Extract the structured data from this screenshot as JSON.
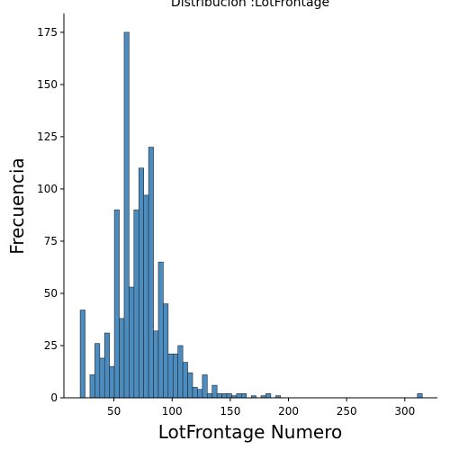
{
  "chart_data": {
    "type": "bar",
    "title": "Distribución :LotFrontage",
    "xlabel": "LotFrontage Numero",
    "ylabel": "Frecuencia",
    "xlim": [
      7,
      328
    ],
    "ylim": [
      0,
      184
    ],
    "xticks": [
      50,
      100,
      150,
      200,
      250,
      300
    ],
    "yticks": [
      0,
      25,
      50,
      75,
      100,
      125,
      150,
      175
    ],
    "bin_width": 4.2,
    "bins": [
      {
        "x0": 21.0,
        "value": 42
      },
      {
        "x0": 29.4,
        "value": 11
      },
      {
        "x0": 33.6,
        "value": 26
      },
      {
        "x0": 37.8,
        "value": 19
      },
      {
        "x0": 42.0,
        "value": 31
      },
      {
        "x0": 46.2,
        "value": 15
      },
      {
        "x0": 50.4,
        "value": 90
      },
      {
        "x0": 54.6,
        "value": 38
      },
      {
        "x0": 58.8,
        "value": 175
      },
      {
        "x0": 63.0,
        "value": 53
      },
      {
        "x0": 67.2,
        "value": 90
      },
      {
        "x0": 71.4,
        "value": 110
      },
      {
        "x0": 75.6,
        "value": 97
      },
      {
        "x0": 79.8,
        "value": 120
      },
      {
        "x0": 84.0,
        "value": 32
      },
      {
        "x0": 88.2,
        "value": 65
      },
      {
        "x0": 92.4,
        "value": 45
      },
      {
        "x0": 96.6,
        "value": 21
      },
      {
        "x0": 100.8,
        "value": 21
      },
      {
        "x0": 105.0,
        "value": 25
      },
      {
        "x0": 109.2,
        "value": 17
      },
      {
        "x0": 113.4,
        "value": 12
      },
      {
        "x0": 117.6,
        "value": 5
      },
      {
        "x0": 121.8,
        "value": 4
      },
      {
        "x0": 126.0,
        "value": 11
      },
      {
        "x0": 130.2,
        "value": 2
      },
      {
        "x0": 134.4,
        "value": 6
      },
      {
        "x0": 138.6,
        "value": 2
      },
      {
        "x0": 142.8,
        "value": 2
      },
      {
        "x0": 147.0,
        "value": 2
      },
      {
        "x0": 151.2,
        "value": 1
      },
      {
        "x0": 155.4,
        "value": 2
      },
      {
        "x0": 159.6,
        "value": 2
      },
      {
        "x0": 168.0,
        "value": 1
      },
      {
        "x0": 176.4,
        "value": 1
      },
      {
        "x0": 180.6,
        "value": 2
      },
      {
        "x0": 189.0,
        "value": 1
      },
      {
        "x0": 310.8,
        "value": 2
      }
    ],
    "bar_color": "#4c8cbf",
    "edge_color": "#1f2a33",
    "grid": false,
    "legend": "none"
  }
}
